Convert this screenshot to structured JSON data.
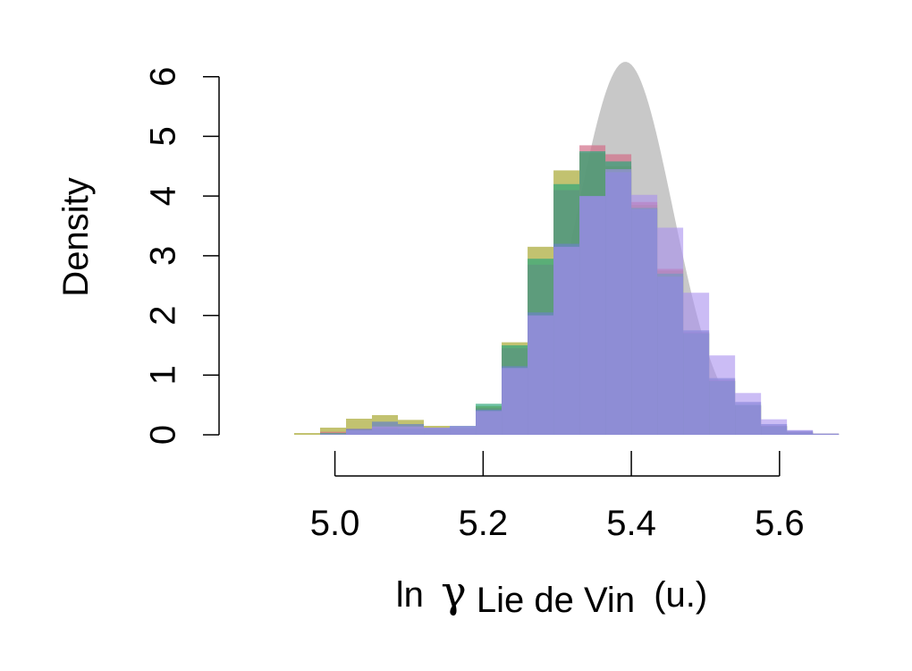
{
  "chart_data": {
    "type": "bar",
    "title": "",
    "ylabel": "Density",
    "xlabel": {
      "prefix": "ln",
      "symbol": "γ",
      "subscript": "Lie de Vin",
      "unit": "(u.)"
    },
    "xlim": [
      4.91,
      5.71
    ],
    "ylim": [
      0,
      6.4
    ],
    "x_ticks": [
      {
        "value": 5.0,
        "label": "5.0"
      },
      {
        "value": 5.2,
        "label": "5.2"
      },
      {
        "value": 5.4,
        "label": "5.4"
      },
      {
        "value": 5.6,
        "label": "5.6"
      }
    ],
    "y_ticks": [
      {
        "value": 0,
        "label": "0"
      },
      {
        "value": 1,
        "label": "1"
      },
      {
        "value": 2,
        "label": "2"
      },
      {
        "value": 3,
        "label": "3"
      },
      {
        "value": 4,
        "label": "4"
      },
      {
        "value": 5,
        "label": "5"
      },
      {
        "value": 6,
        "label": "6"
      }
    ],
    "grid": false,
    "legend": "none",
    "prior_curve": {
      "color": "#c8c8c8",
      "mean": 5.392,
      "sd": 0.064,
      "peak_density": 6.25
    },
    "bin_edges": [
      4.91,
      4.945,
      4.98,
      5.015,
      5.05,
      5.085,
      5.12,
      5.155,
      5.19,
      5.225,
      5.26,
      5.295,
      5.33,
      5.365,
      5.4,
      5.435,
      5.47,
      5.505,
      5.54,
      5.575,
      5.61,
      5.645,
      5.68,
      5.71
    ],
    "series": [
      {
        "color": "#9a9a10",
        "opacity": 0.6,
        "values": [
          0.0,
          0.03,
          0.12,
          0.27,
          0.33,
          0.25,
          0.15,
          0.12,
          0.48,
          1.55,
          3.15,
          4.43,
          4.72,
          4.5,
          3.85,
          2.75,
          1.7,
          0.9,
          0.5,
          0.15,
          0.05,
          0.02,
          0.0
        ]
      },
      {
        "color": "#d26e87",
        "opacity": 0.7,
        "values": [
          0.0,
          0.0,
          0.05,
          0.1,
          0.12,
          0.1,
          0.08,
          0.1,
          0.45,
          1.45,
          2.85,
          4.1,
          4.85,
          4.7,
          3.9,
          2.78,
          1.72,
          0.92,
          0.48,
          0.15,
          0.05,
          0.01,
          0.0
        ]
      },
      {
        "color": "#2ea57a",
        "opacity": 0.7,
        "values": [
          0.0,
          0.0,
          0.03,
          0.08,
          0.1,
          0.1,
          0.1,
          0.14,
          0.52,
          1.5,
          2.95,
          4.2,
          4.75,
          4.58,
          3.8,
          2.7,
          1.7,
          0.9,
          0.5,
          0.14,
          0.04,
          0.01,
          0.0
        ]
      },
      {
        "color": "#6a86c2",
        "opacity": 0.75,
        "values": [
          0.0,
          0.0,
          0.0,
          0.1,
          0.22,
          0.18,
          0.12,
          0.15,
          0.42,
          1.15,
          2.05,
          3.2,
          4.0,
          4.4,
          3.78,
          2.65,
          1.75,
          0.95,
          0.55,
          0.18,
          0.07,
          0.02,
          0.0
        ]
      },
      {
        "color": "#a890ee",
        "opacity": 0.6,
        "values": [
          0.0,
          0.0,
          0.02,
          0.08,
          0.14,
          0.14,
          0.12,
          0.14,
          0.4,
          1.12,
          2.0,
          3.15,
          4.0,
          4.45,
          4.02,
          3.47,
          2.38,
          1.33,
          0.7,
          0.26,
          0.08,
          0.02,
          0.0
        ]
      }
    ]
  }
}
